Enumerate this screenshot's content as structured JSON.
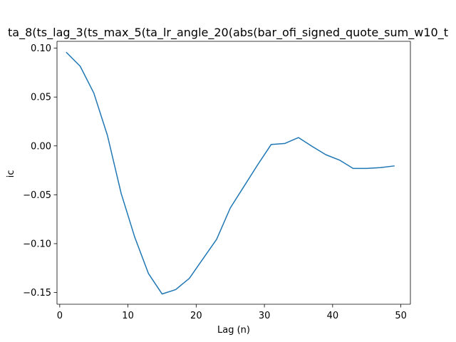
{
  "chart_data": {
    "type": "line",
    "title": "ta_8(ts_lag_3(ts_max_5(ta_lr_angle_20(abs(bar_ofi_signed_quote_sum_w10_t",
    "xlabel": "Lag (n)",
    "ylabel": "ic",
    "xlim": [
      -0.4,
      51.4
    ],
    "ylim": [
      -0.162,
      0.107
    ],
    "xticks": [
      0,
      10,
      20,
      30,
      40,
      50
    ],
    "yticks": [
      0.1,
      0.05,
      0.0,
      -0.05,
      -0.1,
      -0.15
    ],
    "xtick_labels": [
      "0",
      "10",
      "20",
      "30",
      "40",
      "50"
    ],
    "ytick_labels": [
      "0.10",
      "0.05",
      "0.00",
      "−0.05",
      "−0.10",
      "−0.15"
    ],
    "grid": false,
    "series": [
      {
        "color": "#1f77b4",
        "x": [
          1,
          3,
          5,
          7,
          9,
          11,
          13,
          15,
          17,
          19,
          21,
          23,
          25,
          27,
          29,
          31,
          33,
          35,
          37,
          39,
          41,
          43,
          45,
          47,
          49
        ],
        "y": [
          0.0955,
          0.0815,
          0.054,
          0.0105,
          -0.0485,
          -0.0935,
          -0.1305,
          -0.1515,
          -0.147,
          -0.1355,
          -0.1155,
          -0.0955,
          -0.0635,
          -0.0415,
          -0.0195,
          0.0015,
          0.0025,
          0.0085,
          -0.0005,
          -0.009,
          -0.0145,
          -0.023,
          -0.023,
          -0.0222,
          -0.0205
        ]
      }
    ]
  }
}
